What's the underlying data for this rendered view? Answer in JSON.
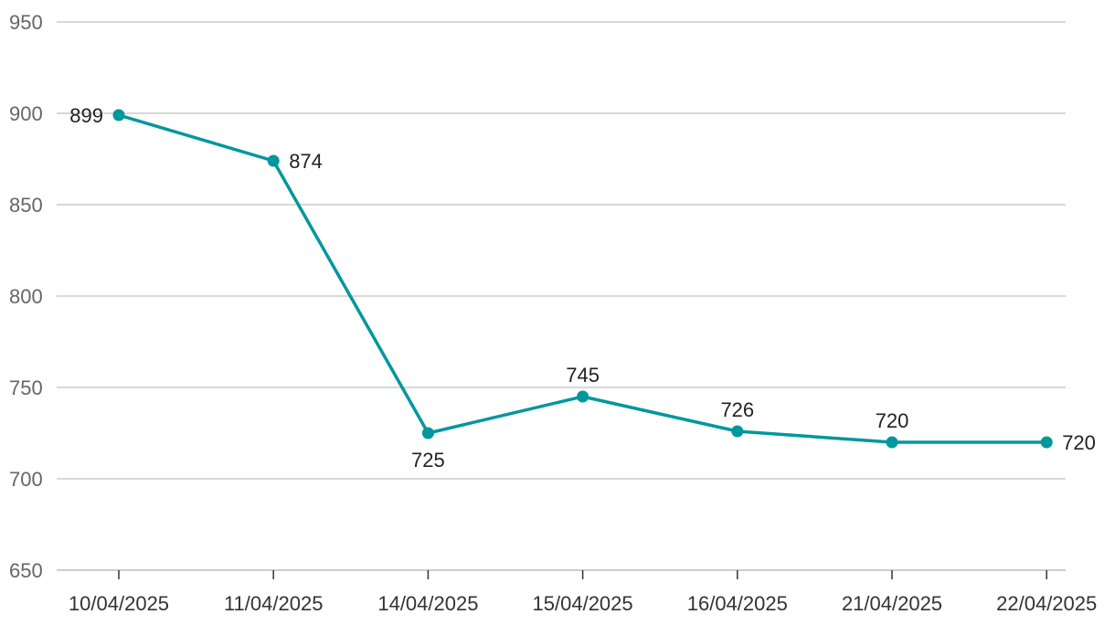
{
  "chart_data": {
    "type": "line",
    "title": "",
    "xlabel": "",
    "ylabel": "",
    "categories": [
      "10/04/2025",
      "11/04/2025",
      "14/04/2025",
      "15/04/2025",
      "16/04/2025",
      "21/04/2025",
      "22/04/2025"
    ],
    "series": [
      {
        "values": [
          899,
          874,
          725,
          745,
          726,
          720,
          720
        ]
      }
    ],
    "data_labels": [
      "899",
      "874",
      "725",
      "745",
      "726",
      "720",
      "720"
    ],
    "ylim": [
      650,
      950
    ],
    "yticks": [
      650,
      700,
      750,
      800,
      850,
      900,
      950
    ],
    "grid": true,
    "legend": "none",
    "colors": {
      "line": "#00979d",
      "grid": "#cccccc",
      "axis_text": "#666666"
    }
  }
}
